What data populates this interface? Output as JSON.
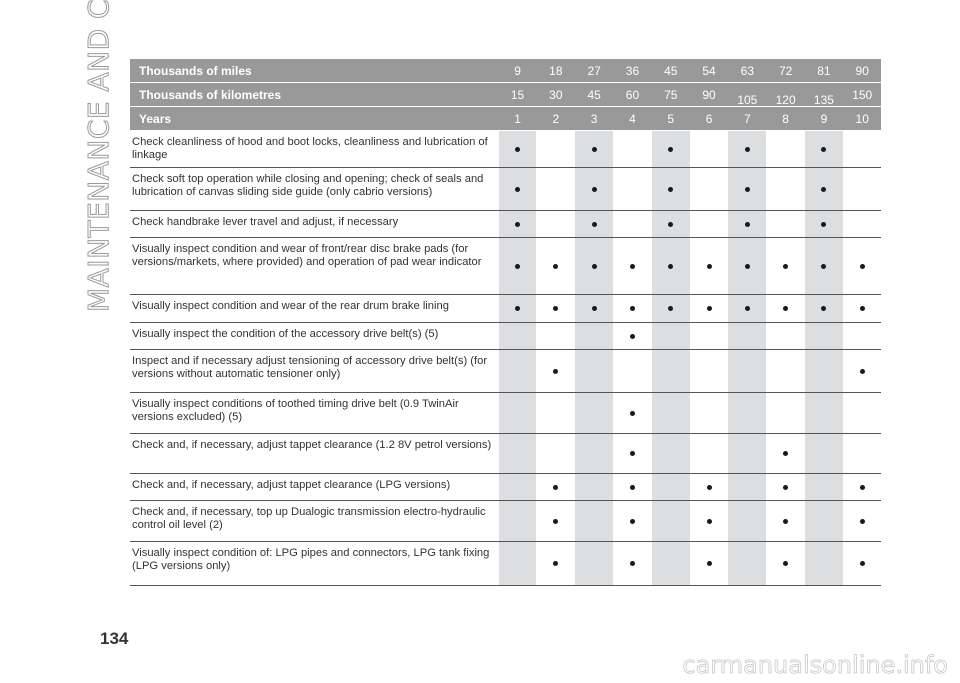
{
  "section_title": "MAINTENANCE AND CARE",
  "page_number": "134",
  "watermark": "carmanualsonline.info",
  "header_rows": [
    {
      "label": "Thousands of miles",
      "values": [
        "9",
        "18",
        "27",
        "36",
        "45",
        "54",
        "63",
        "72",
        "81",
        "90"
      ]
    },
    {
      "label": "Thousands of kilometres",
      "values": [
        "15",
        "30",
        "45",
        "60",
        "75",
        "90",
        "105",
        "120",
        "135",
        "150"
      ]
    },
    {
      "label": "Years",
      "values": [
        "1",
        "2",
        "3",
        "4",
        "5",
        "6",
        "7",
        "8",
        "9",
        "10"
      ]
    }
  ],
  "rows": [
    {
      "label": "Check cleanliness of hood and boot locks, cleanliness and lubrication of linkage",
      "dots": [
        1,
        0,
        1,
        0,
        1,
        0,
        1,
        0,
        1,
        0
      ]
    },
    {
      "label": "Check soft top operation while closing and opening; check of seals and lubrication of canvas sliding side guide (only cabrio versions)",
      "dots": [
        1,
        0,
        1,
        0,
        1,
        0,
        1,
        0,
        1,
        0
      ]
    },
    {
      "label": "Check handbrake lever travel and adjust, if necessary",
      "dots": [
        1,
        0,
        1,
        0,
        1,
        0,
        1,
        0,
        1,
        0
      ]
    },
    {
      "label": "Visually inspect condition and wear of front/rear disc brake pads (for versions/markets, where provided) and operation of pad wear indicator",
      "dots": [
        1,
        1,
        1,
        1,
        1,
        1,
        1,
        1,
        1,
        1
      ]
    },
    {
      "label": "Visually inspect condition and wear of the rear drum brake lining",
      "dots": [
        1,
        1,
        1,
        1,
        1,
        1,
        1,
        1,
        1,
        1
      ]
    },
    {
      "label": "Visually inspect the condition of the accessory drive belt(s) (5)",
      "dots": [
        0,
        0,
        0,
        1,
        0,
        0,
        0,
        0,
        0,
        0
      ]
    },
    {
      "label": "Inspect and if necessary adjust tensioning of accessory drive belt(s) (for versions without automatic tensioner only)",
      "dots": [
        0,
        1,
        0,
        0,
        0,
        0,
        0,
        0,
        0,
        1
      ]
    },
    {
      "label": "Visually inspect conditions of toothed timing drive belt (0.9 TwinAir versions excluded) (5)",
      "dots": [
        0,
        0,
        0,
        1,
        0,
        0,
        0,
        0,
        0,
        0
      ]
    },
    {
      "label": "Check and, if necessary, adjust tappet clearance (1.2 8V petrol versions)",
      "dots": [
        0,
        0,
        0,
        1,
        0,
        0,
        0,
        1,
        0,
        0
      ]
    },
    {
      "label": "Check and, if necessary, adjust tappet clearance (LPG versions)",
      "dots": [
        0,
        1,
        0,
        1,
        0,
        1,
        0,
        1,
        0,
        1
      ]
    },
    {
      "label": "Check and, if necessary, top up Dualogic transmission electro-hydraulic control oil level (2)",
      "dots": [
        0,
        1,
        0,
        1,
        0,
        1,
        0,
        1,
        0,
        1
      ]
    },
    {
      "label": "Visually inspect condition of: LPG pipes and connectors, LPG tank fixing (LPG versions only)",
      "dots": [
        0,
        1,
        0,
        1,
        0,
        1,
        0,
        1,
        0,
        1
      ]
    }
  ]
}
